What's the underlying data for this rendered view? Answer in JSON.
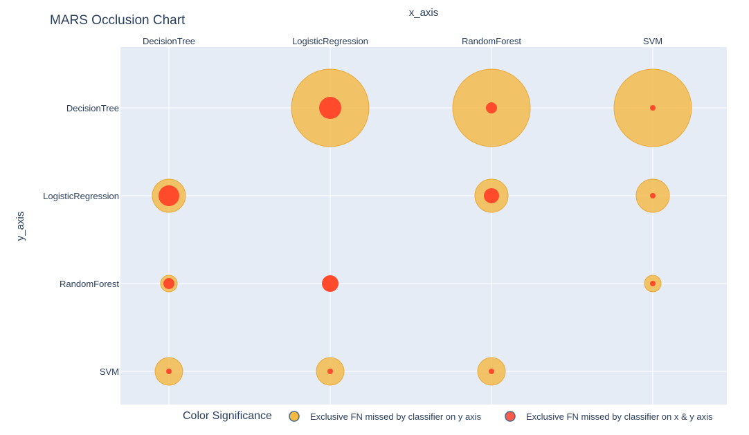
{
  "chart_data": {
    "type": "scatter",
    "title": "MARS Occlusion Chart",
    "xlabel": "x_axis",
    "ylabel": "y_axis",
    "x_categories": [
      "DecisionTree",
      "LogisticRegression",
      "RandomForest",
      "SVM"
    ],
    "y_categories": [
      "DecisionTree",
      "LogisticRegression",
      "RandomForest",
      "SVM"
    ],
    "grid": true,
    "legend": {
      "title": "Color Significance",
      "placement": "bottom",
      "items": [
        {
          "label": "Exclusive FN missed by classifier on y axis",
          "color": "#f4b942"
        },
        {
          "label": "Exclusive FN missed by classifier on x & y axis",
          "color": "#ff4b2b"
        }
      ]
    },
    "series": [
      {
        "name": "Exclusive FN missed by classifier on y axis",
        "color": "#f4b942",
        "points": [
          {
            "x": "LogisticRegression",
            "y": "DecisionTree",
            "size": 56
          },
          {
            "x": "RandomForest",
            "y": "DecisionTree",
            "size": 56
          },
          {
            "x": "SVM",
            "y": "DecisionTree",
            "size": 56
          },
          {
            "x": "DecisionTree",
            "y": "LogisticRegression",
            "size": 24
          },
          {
            "x": "RandomForest",
            "y": "LogisticRegression",
            "size": 24
          },
          {
            "x": "SVM",
            "y": "LogisticRegression",
            "size": 24
          },
          {
            "x": "DecisionTree",
            "y": "RandomForest",
            "size": 12
          },
          {
            "x": "SVM",
            "y": "RandomForest",
            "size": 12
          },
          {
            "x": "DecisionTree",
            "y": "SVM",
            "size": 20
          },
          {
            "x": "LogisticRegression",
            "y": "SVM",
            "size": 20
          },
          {
            "x": "RandomForest",
            "y": "SVM",
            "size": 20
          }
        ]
      },
      {
        "name": "Exclusive FN missed by classifier on x & y axis",
        "color": "#ff4b2b",
        "points": [
          {
            "x": "LogisticRegression",
            "y": "DecisionTree",
            "size": 16
          },
          {
            "x": "RandomForest",
            "y": "DecisionTree",
            "size": 8
          },
          {
            "x": "SVM",
            "y": "DecisionTree",
            "size": 4
          },
          {
            "x": "DecisionTree",
            "y": "LogisticRegression",
            "size": 15
          },
          {
            "x": "RandomForest",
            "y": "LogisticRegression",
            "size": 11
          },
          {
            "x": "SVM",
            "y": "LogisticRegression",
            "size": 4
          },
          {
            "x": "DecisionTree",
            "y": "RandomForest",
            "size": 8
          },
          {
            "x": "LogisticRegression",
            "y": "RandomForest",
            "size": 12
          },
          {
            "x": "SVM",
            "y": "RandomForest",
            "size": 4
          },
          {
            "x": "DecisionTree",
            "y": "SVM",
            "size": 4
          },
          {
            "x": "LogisticRegression",
            "y": "SVM",
            "size": 4
          },
          {
            "x": "RandomForest",
            "y": "SVM",
            "size": 4
          }
        ]
      }
    ]
  }
}
